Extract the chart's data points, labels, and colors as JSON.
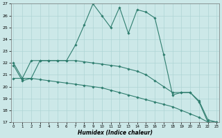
{
  "xlabel": "Humidex (Indice chaleur)",
  "x": [
    0,
    1,
    2,
    3,
    4,
    5,
    6,
    7,
    8,
    9,
    10,
    11,
    12,
    13,
    14,
    15,
    16,
    17,
    18,
    19,
    20,
    21,
    22,
    23
  ],
  "line1": [
    21.8,
    20.5,
    20.7,
    22.2,
    22.2,
    22.2,
    22.2,
    23.5,
    25.2,
    27.0,
    26.0,
    25.0,
    26.7,
    24.5,
    26.5,
    26.3,
    25.8,
    22.7,
    19.3,
    19.5,
    19.5,
    18.7,
    17.0,
    17.0
  ],
  "line2": [
    20.7,
    20.7,
    20.7,
    20.6,
    20.5,
    20.4,
    20.3,
    20.2,
    20.1,
    20.0,
    19.9,
    19.7,
    19.5,
    19.3,
    19.1,
    18.9,
    18.7,
    18.5,
    18.3,
    18.0,
    17.7,
    17.4,
    17.0,
    17.0
  ],
  "line3": [
    22.0,
    20.7,
    22.2,
    22.2,
    22.2,
    22.2,
    22.2,
    22.2,
    22.1,
    22.0,
    21.9,
    21.8,
    21.7,
    21.5,
    21.3,
    21.0,
    20.5,
    20.0,
    19.5,
    19.5,
    19.5,
    18.8,
    17.2,
    17.0
  ],
  "line_color": "#2e7d6e",
  "bg_color": "#cce8e8",
  "grid_color": "#aed4d4",
  "ylim": [
    17,
    27
  ],
  "xlim": [
    -0.3,
    23.3
  ],
  "yticks": [
    17,
    18,
    19,
    20,
    21,
    22,
    23,
    24,
    25,
    26,
    27
  ],
  "xticks": [
    0,
    1,
    2,
    3,
    4,
    5,
    6,
    7,
    8,
    9,
    10,
    11,
    12,
    13,
    14,
    15,
    16,
    17,
    18,
    19,
    20,
    21,
    22,
    23
  ]
}
